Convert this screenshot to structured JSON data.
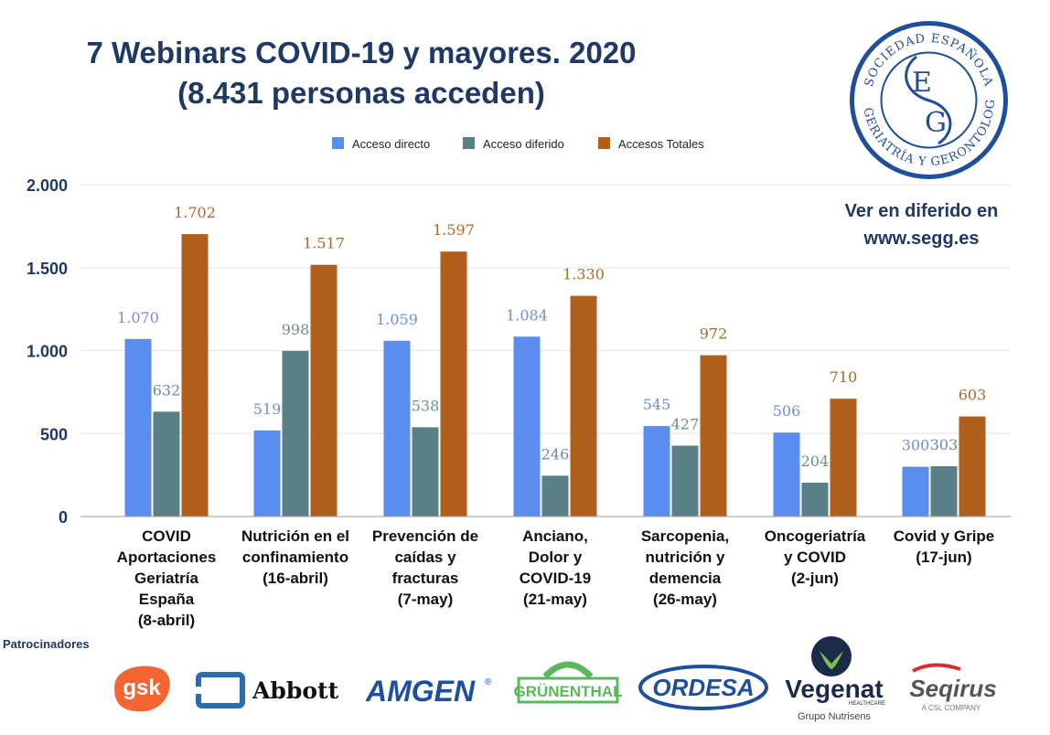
{
  "header": {
    "title_line1": "7 Webinars COVID-19 y mayores. 2020",
    "title_line2": "(8.431 personas acceden)"
  },
  "seal": {
    "text": "SOCIEDAD ESPAÑOLA DE GERIATRÍA Y GERONTOLOGÍA",
    "letters": "E G"
  },
  "promo": {
    "line1": "Ver en diferido en",
    "line2": "www.segg.es"
  },
  "sponsors": {
    "label": "Patrocinadores",
    "logos": [
      "gsk",
      "Abbott",
      "AMGEN",
      "GRÜNENTHAL",
      "ORDESA",
      "Vegenat",
      "Seqirus"
    ],
    "vegenat_sub": "Grupo Nutrisens",
    "vegenat_healthcare": "HEALTHCARE",
    "seqirus_sub": "A CSL COMPANY"
  },
  "colors": {
    "acceso_directo": "#5b8def",
    "acceso_diferido": "#5a7f86",
    "accesos_totales": "#b05f1c",
    "title": "#1f3864"
  },
  "chart_data": {
    "type": "bar",
    "categories": [
      [
        "COVID",
        "Aportaciones",
        "Geriatría",
        "España",
        "(8-abril)"
      ],
      [
        "Nutrición en el",
        "confinamiento",
        "(16-abril)"
      ],
      [
        "Prevención de",
        "caídas y",
        "fracturas",
        "(7-may)"
      ],
      [
        "Anciano,",
        "Dolor y",
        "COVID-19",
        "(21-may)"
      ],
      [
        "Sarcopenia,",
        "nutrición y",
        "demencia",
        "(26-may)"
      ],
      [
        "Oncogeriatría",
        "y COVID",
        "(2-jun)"
      ],
      [
        "Covid y Gripe",
        "(17-jun)"
      ]
    ],
    "series": [
      {
        "name": "Acceso directo",
        "values": [
          1070,
          519,
          1059,
          1084,
          545,
          506,
          300
        ],
        "labels": [
          "1.070",
          "519",
          "1.059",
          "1.084",
          "545",
          "506",
          "300"
        ],
        "color": "#5b8def",
        "label_color": "#6f8fd8"
      },
      {
        "name": "Acceso  diferido",
        "values": [
          632,
          998,
          538,
          246,
          427,
          204,
          303
        ],
        "labels": [
          "632",
          "998",
          "538",
          "246",
          "427",
          "204",
          "303"
        ],
        "color": "#5a7f86",
        "label_color": "#6a8c92"
      },
      {
        "name": "Accesos  Totales",
        "values": [
          1702,
          1517,
          1597,
          1330,
          972,
          710,
          603
        ],
        "labels": [
          "1.702",
          "1.517",
          "1.597",
          "1.330",
          "972",
          "710",
          "603"
        ],
        "color": "#b05f1c",
        "label_color": "#a86a2a"
      }
    ],
    "yticks": [
      0,
      500,
      1000,
      1500,
      2000
    ],
    "ytick_labels": [
      "0",
      "500",
      "1.000",
      "1.500",
      "2.000"
    ],
    "ylim": [
      0,
      2000
    ],
    "grid": true,
    "legend_position": "top-center"
  }
}
